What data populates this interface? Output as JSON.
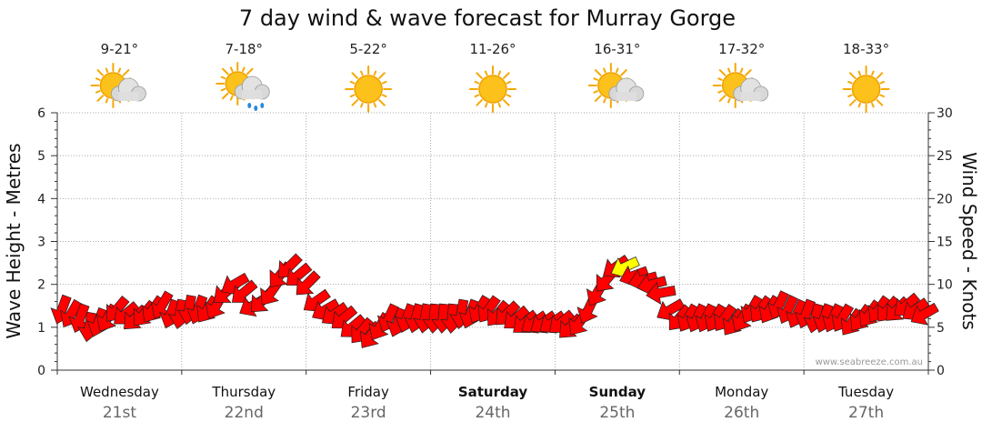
{
  "chart_data": {
    "type": "line",
    "title": "7 day wind & wave forecast for Murray Gorge",
    "ylabel_left": "Wave Height - Metres",
    "ylabel_right": "Wind Speed - Knots",
    "ylim_left": [
      0,
      6
    ],
    "ylim_right": [
      0,
      30
    ],
    "yticks_left": [
      "0",
      "1",
      "2",
      "3",
      "4",
      "5",
      "6"
    ],
    "yticks_right": [
      "0",
      "5",
      "10",
      "15",
      "20",
      "25",
      "30"
    ],
    "grid": true,
    "days": [
      {
        "name": "Wednesday",
        "date": "21st",
        "temp": "9-21°",
        "icon": "partly-cloudy-icon",
        "bold": false
      },
      {
        "name": "Thursday",
        "date": "22nd",
        "temp": "7-18°",
        "icon": "showers-icon",
        "bold": false
      },
      {
        "name": "Friday",
        "date": "23rd",
        "temp": "5-22°",
        "icon": "sunny-icon",
        "bold": false
      },
      {
        "name": "Saturday",
        "date": "24th",
        "temp": "11-26°",
        "icon": "sunny-icon",
        "bold": true
      },
      {
        "name": "Sunday",
        "date": "25th",
        "temp": "16-31°",
        "icon": "partly-cloudy-icon",
        "bold": true
      },
      {
        "name": "Monday",
        "date": "26th",
        "temp": "17-32°",
        "icon": "partly-cloudy-icon",
        "bold": false
      },
      {
        "name": "Tuesday",
        "date": "27th",
        "temp": "18-33°",
        "icon": "sunny-icon",
        "bold": false
      }
    ],
    "wind_series": {
      "name": "Wind",
      "unit": "knots",
      "arrow_color": "#ff0000",
      "highlight_color": "#ffff00",
      "values": [
        7.0,
        6.5,
        6.0,
        5.0,
        5.5,
        6.0,
        7.0,
        6.5,
        6.0,
        6.5,
        7.0,
        7.5,
        6.5,
        6.5,
        7.0,
        7.0,
        7.0,
        7.5,
        9.0,
        10.0,
        9.0,
        7.5,
        8.0,
        9.0,
        11.0,
        12.0,
        11.0,
        10.0,
        8.0,
        7.0,
        6.5,
        6.0,
        5.0,
        4.5,
        4.0,
        5.0,
        6.0,
        5.5,
        6.0,
        6.0,
        6.0,
        6.0,
        6.0,
        6.0,
        6.5,
        6.5,
        7.0,
        7.0,
        6.5,
        6.5,
        6.0,
        5.5,
        5.5,
        5.5,
        5.5,
        5.5,
        5.0,
        5.5,
        7.0,
        9.0,
        10.5,
        12.0,
        12.0,
        11.0,
        10.5,
        10.0,
        9.0,
        7.0,
        6.0,
        6.0,
        6.0,
        6.0,
        6.0,
        6.0,
        5.5,
        6.0,
        7.0,
        7.0,
        7.0,
        7.5,
        7.0,
        6.5,
        6.5,
        6.0,
        6.0,
        6.0,
        6.0,
        5.5,
        6.0,
        6.5,
        7.0,
        7.0,
        7.0,
        7.5,
        7.0,
        6.5
      ],
      "dir_deg": [
        200,
        210,
        200,
        190,
        200,
        210,
        220,
        230,
        225,
        220,
        215,
        210,
        200,
        190,
        190,
        200,
        215,
        210,
        230,
        240,
        230,
        240,
        225,
        215,
        220,
        225,
        230,
        225,
        235,
        240,
        235,
        230,
        230,
        220,
        215,
        210,
        205,
        200,
        200,
        195,
        190,
        185,
        185,
        185,
        190,
        200,
        210,
        215,
        220,
        225,
        230,
        230,
        235,
        235,
        235,
        230,
        225,
        215,
        205,
        210,
        220,
        235,
        245,
        250,
        255,
        255,
        260,
        240,
        220,
        210,
        205,
        205,
        210,
        215,
        215,
        210,
        210,
        215,
        210,
        205,
        205,
        205,
        200,
        195,
        200,
        205,
        210,
        215,
        215,
        215,
        215,
        220,
        225,
        230,
        235,
        240
      ],
      "highlight_indices": [
        62
      ]
    },
    "wave_series": {
      "name": "Wave",
      "unit": "metres",
      "values": [
        1.4,
        1.3,
        1.2,
        1.0,
        1.1,
        1.2,
        1.4,
        1.3,
        1.2,
        1.3,
        1.4,
        1.5,
        1.3,
        1.3,
        1.4,
        1.4,
        1.4,
        1.5,
        1.8,
        2.0,
        1.8,
        1.5,
        1.6,
        1.8,
        2.2,
        2.4,
        2.2,
        2.0,
        1.6,
        1.4,
        1.3,
        1.2,
        1.0,
        0.9,
        0.8,
        1.0,
        1.2,
        1.1,
        1.2,
        1.2,
        1.2,
        1.2,
        1.2,
        1.2,
        1.3,
        1.3,
        1.4,
        1.4,
        1.3,
        1.3,
        1.2,
        1.1,
        1.1,
        1.1,
        1.1,
        1.1,
        1.0,
        1.1,
        1.4,
        1.8,
        2.1,
        2.4,
        2.4,
        2.2,
        2.1,
        2.0,
        1.8,
        1.4,
        1.2,
        1.2,
        1.2,
        1.2,
        1.2,
        1.2,
        1.1,
        1.2,
        1.4,
        1.4,
        1.4,
        1.5,
        1.4,
        1.3,
        1.3,
        1.2,
        1.2,
        1.2,
        1.2,
        1.1,
        1.2,
        1.3,
        1.4,
        1.4,
        1.4,
        1.5,
        1.4,
        1.3
      ]
    },
    "credit": "www.seabreeze.com.au"
  }
}
